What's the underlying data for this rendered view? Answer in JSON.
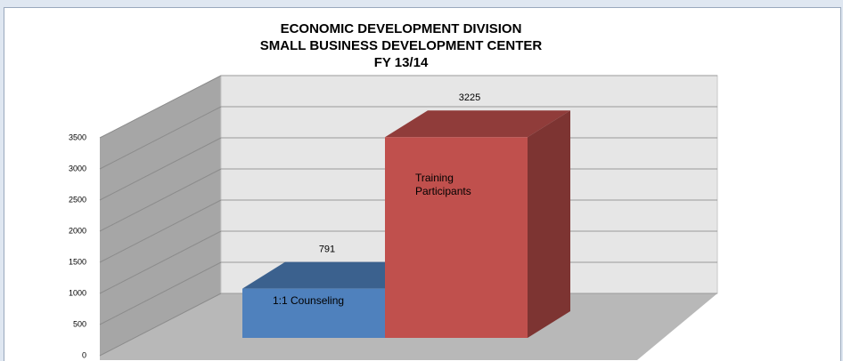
{
  "chart_data": {
    "type": "bar3d",
    "title": [
      "ECONOMIC DEVELOPMENT DIVISION",
      "SMALL BUSINESS DEVELOPMENT CENTER",
      "FY 13/14"
    ],
    "categories": [
      "1:1 Counseling",
      "Training Participants"
    ],
    "values": [
      791,
      3225
    ],
    "colors": [
      "#4f81bd",
      "#c0504d"
    ],
    "ylim": [
      0,
      3500
    ],
    "yticks": [
      0,
      500,
      1000,
      1500,
      2000,
      2500,
      3000,
      3500
    ],
    "grid": true
  }
}
